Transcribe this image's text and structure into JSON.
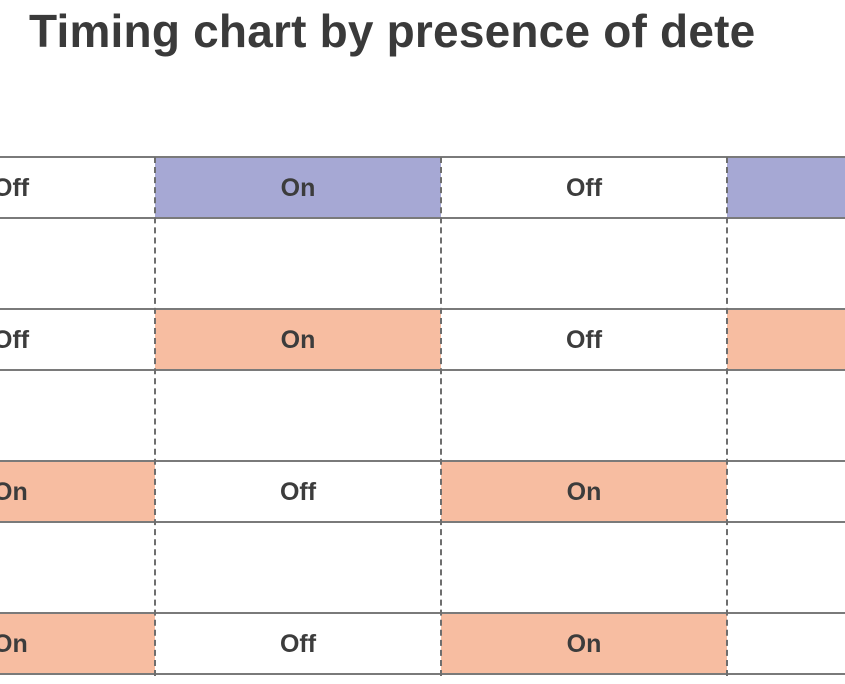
{
  "title": "Timing chart by presence of dete",
  "colors": {
    "on_purple": "#a6a8d4",
    "on_orange": "#f7bda1",
    "line": "#7a7a7a",
    "text": "#3c3c3c"
  },
  "rows": [
    {
      "color": "purple",
      "cells": [
        {
          "label": "Off",
          "state": "off"
        },
        {
          "label": "On",
          "state": "on"
        },
        {
          "label": "Off",
          "state": "off"
        },
        {
          "label": "",
          "state": "on"
        }
      ]
    },
    {
      "color": "orange",
      "cells": [
        {
          "label": "Off",
          "state": "off"
        },
        {
          "label": "On",
          "state": "on"
        },
        {
          "label": "Off",
          "state": "off"
        },
        {
          "label": "",
          "state": "on"
        }
      ]
    },
    {
      "color": "orange",
      "cells": [
        {
          "label": "On",
          "state": "on"
        },
        {
          "label": "Off",
          "state": "off"
        },
        {
          "label": "On",
          "state": "on"
        },
        {
          "label": "",
          "state": "off"
        }
      ]
    },
    {
      "color": "orange",
      "cells": [
        {
          "label": "On",
          "state": "on"
        },
        {
          "label": "Off",
          "state": "off"
        },
        {
          "label": "On",
          "state": "on"
        },
        {
          "label": "",
          "state": "off"
        }
      ]
    }
  ]
}
